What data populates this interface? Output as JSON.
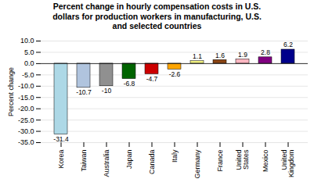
{
  "chart_data": {
    "type": "bar",
    "title": "Percent change in hourly compensation costs in U.S.\ndollars for production workers in manufacturing, U.S.\nand selected countries",
    "ylabel": "Percent change",
    "categories": [
      "Korea",
      "Taiwan",
      "Australia",
      "Japan",
      "Canada",
      "Italy",
      "Germany",
      "France",
      "United\nStates",
      "Mexico",
      "United\nKingdom"
    ],
    "values": [
      -31.4,
      -10.7,
      -10.0,
      -6.8,
      -4.7,
      -2.6,
      1.1,
      1.6,
      1.9,
      2.8,
      6.2
    ],
    "colors": [
      "#add8e6",
      "#b0c4de",
      "#909090",
      "#006400",
      "#cc0000",
      "#ffa500",
      "#f0f080",
      "#8b4513",
      "#ffb6c1",
      "#800080",
      "#00008b"
    ],
    "ylim": [
      -35.0,
      10.0
    ],
    "yticks": [
      {
        "value": -35,
        "label": "-35.0"
      },
      {
        "value": -30,
        "label": "-30.0"
      },
      {
        "value": -25,
        "label": "-25.0"
      },
      {
        "value": -20,
        "label": "-20.0"
      },
      {
        "value": -15,
        "label": "-15.0"
      },
      {
        "value": -10,
        "label": "-10.0"
      },
      {
        "value": -5,
        "label": "-5.0"
      },
      {
        "value": 0,
        "label": "0.0"
      },
      {
        "value": 5,
        "label": "5.0"
      },
      {
        "value": 10,
        "label": "10.0"
      }
    ],
    "grid": true,
    "data_labels": true
  }
}
